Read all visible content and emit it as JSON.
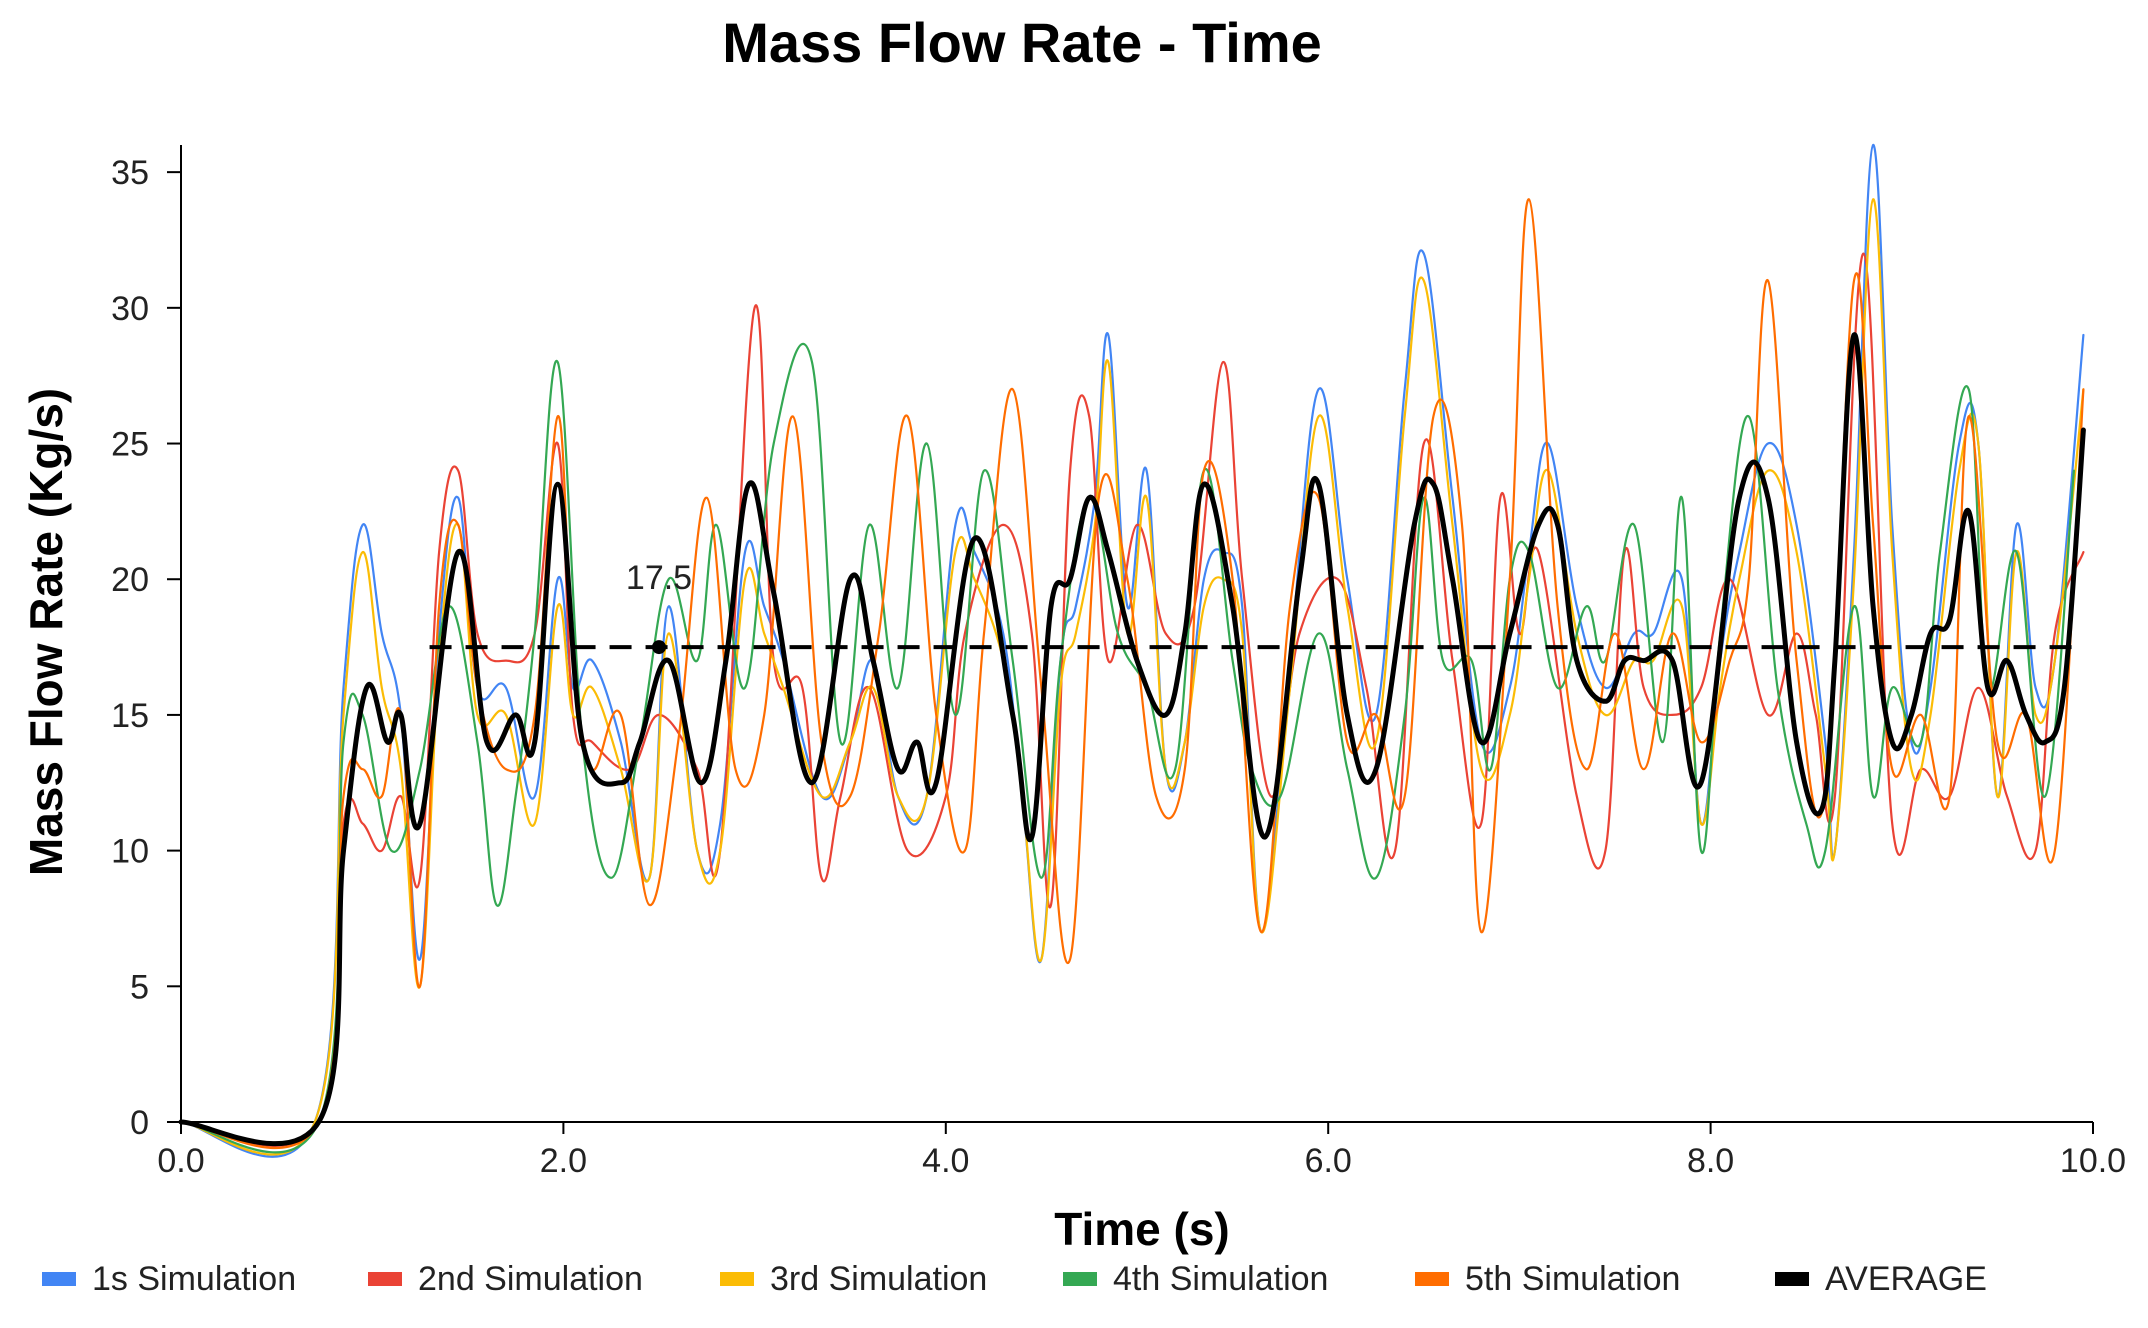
{
  "chart_data": {
    "type": "line",
    "title": "Mass Flow Rate - Time",
    "xlabel": "Time (s)",
    "ylabel": "Mass Flow Rate (Kg/s)",
    "xlim": [
      0,
      10
    ],
    "ylim": [
      0,
      36
    ],
    "x_ticks": [
      0,
      2,
      4,
      6,
      8,
      10
    ],
    "x_tick_labels": [
      "0.0",
      "2.0",
      "4.0",
      "6.0",
      "8.0",
      "10.0"
    ],
    "y_ticks": [
      0,
      5,
      10,
      15,
      20,
      25,
      30,
      35
    ],
    "y_tick_labels": [
      "0",
      "5",
      "10",
      "15",
      "20",
      "25",
      "30",
      "35"
    ],
    "grid": false,
    "legend_position": "bottom",
    "reference_line": {
      "value": 17.5,
      "label": "17.5",
      "x_start": 1.3,
      "x_end": 9.9,
      "marker_x": 2.5,
      "style": "dashed",
      "color": "#000000"
    },
    "series": [
      {
        "name": "1s Simulation",
        "color": "#4285F4",
        "x": [
          0,
          0.7,
          0.85,
          0.95,
          1.05,
          1.15,
          1.25,
          1.35,
          1.45,
          1.55,
          1.7,
          1.85,
          1.97,
          2.05,
          2.15,
          2.3,
          2.45,
          2.55,
          2.7,
          2.82,
          2.95,
          3.05,
          3.15,
          3.35,
          3.5,
          3.62,
          3.75,
          3.9,
          4.05,
          4.15,
          4.3,
          4.4,
          4.5,
          4.6,
          4.68,
          4.78,
          4.85,
          4.95,
          5.05,
          5.15,
          5.25,
          5.35,
          5.45,
          5.55,
          5.65,
          5.8,
          5.95,
          6.1,
          6.25,
          6.4,
          6.5,
          6.65,
          6.8,
          6.95,
          7.05,
          7.15,
          7.3,
          7.45,
          7.6,
          7.7,
          7.85,
          7.95,
          8.05,
          8.15,
          8.3,
          8.45,
          8.6,
          8.65,
          8.75,
          8.85,
          8.95,
          9.05,
          9.15,
          9.3,
          9.4,
          9.5,
          9.6,
          9.7,
          9.8,
          9.95
        ],
        "values": [
          0,
          0,
          16,
          22,
          18,
          15,
          6,
          18,
          23,
          16,
          16,
          12,
          20,
          16,
          17,
          14,
          9,
          19,
          10,
          11,
          21,
          19,
          17,
          12,
          14,
          17,
          12,
          12,
          22,
          21,
          18,
          12,
          6,
          17,
          19,
          23,
          29,
          19,
          24,
          13,
          14,
          20,
          21,
          19,
          7,
          17,
          27,
          20,
          15,
          27,
          32,
          23,
          14,
          16,
          21,
          25,
          19,
          16,
          18,
          18,
          20,
          11,
          17,
          21,
          25,
          22,
          14,
          10,
          21,
          36,
          22,
          14,
          16,
          25,
          25,
          12,
          22,
          16,
          17,
          29
        ]
      },
      {
        "name": "2nd Simulation",
        "color": "#EA4335",
        "x": [
          0,
          0.72,
          0.85,
          0.95,
          1.05,
          1.15,
          1.25,
          1.35,
          1.45,
          1.55,
          1.7,
          1.85,
          1.97,
          2.05,
          2.15,
          2.35,
          2.5,
          2.7,
          2.82,
          3.0,
          3.1,
          3.25,
          3.35,
          3.45,
          3.6,
          3.8,
          4.0,
          4.1,
          4.3,
          4.45,
          4.55,
          4.65,
          4.75,
          4.85,
          5.0,
          5.15,
          5.3,
          5.45,
          5.55,
          5.7,
          5.85,
          6.05,
          6.2,
          6.35,
          6.5,
          6.65,
          6.8,
          6.9,
          7.0,
          7.1,
          7.3,
          7.45,
          7.55,
          7.65,
          7.8,
          7.95,
          8.1,
          8.3,
          8.45,
          8.55,
          8.65,
          8.8,
          8.95,
          9.1,
          9.25,
          9.4,
          9.55,
          9.7,
          9.8,
          9.95
        ],
        "values": [
          0,
          0,
          11,
          11,
          10,
          12,
          9,
          21,
          24,
          18,
          17,
          18,
          25,
          15,
          14,
          13,
          15,
          13,
          10,
          30,
          17,
          16,
          9,
          12,
          16,
          10,
          12,
          18,
          22,
          18,
          8,
          24,
          26,
          17,
          22,
          18,
          19,
          28,
          20,
          12,
          18,
          20,
          16,
          10,
          25,
          17,
          11,
          23,
          18,
          21,
          12,
          10,
          21,
          16,
          15,
          16,
          20,
          15,
          18,
          15,
          12,
          32,
          11,
          13,
          12,
          16,
          12,
          10,
          18,
          21
        ]
      },
      {
        "name": "3rd Simulation",
        "color": "#FBBC05",
        "x": [
          0,
          0.7,
          0.85,
          0.95,
          1.05,
          1.15,
          1.25,
          1.35,
          1.45,
          1.55,
          1.7,
          1.85,
          1.97,
          2.05,
          2.15,
          2.3,
          2.45,
          2.55,
          2.7,
          2.82,
          2.95,
          3.05,
          3.15,
          3.35,
          3.5,
          3.62,
          3.75,
          3.9,
          4.05,
          4.15,
          4.3,
          4.4,
          4.5,
          4.6,
          4.68,
          4.78,
          4.85,
          4.95,
          5.05,
          5.15,
          5.25,
          5.35,
          5.45,
          5.55,
          5.65,
          5.8,
          5.95,
          6.1,
          6.25,
          6.4,
          6.5,
          6.65,
          6.8,
          6.95,
          7.05,
          7.15,
          7.3,
          7.45,
          7.6,
          7.7,
          7.85,
          7.95,
          8.05,
          8.15,
          8.3,
          8.45,
          8.6,
          8.65,
          8.75,
          8.85,
          8.95,
          9.05,
          9.15,
          9.3,
          9.4,
          9.5,
          9.6,
          9.7,
          9.8,
          9.95
        ],
        "values": [
          0,
          0,
          15,
          21,
          16,
          13,
          5,
          17,
          22,
          15,
          15,
          11,
          19,
          15,
          16,
          13,
          9,
          18,
          10,
          10,
          20,
          18,
          16,
          12,
          14,
          16,
          12,
          12,
          21,
          20,
          17,
          12,
          6,
          16,
          18,
          22,
          28,
          18,
          23,
          13,
          14,
          19,
          20,
          18,
          7,
          16,
          26,
          19,
          14,
          26,
          31,
          22,
          13,
          15,
          20,
          24,
          18,
          15,
          17,
          17,
          19,
          11,
          16,
          20,
          24,
          21,
          13,
          10,
          20,
          34,
          21,
          13,
          15,
          24,
          25,
          12,
          21,
          15,
          17,
          27
        ]
      },
      {
        "name": "4th Simulation",
        "color": "#34A853",
        "x": [
          0,
          0.72,
          0.85,
          0.95,
          1.1,
          1.25,
          1.4,
          1.55,
          1.65,
          1.75,
          1.85,
          1.97,
          2.1,
          2.25,
          2.4,
          2.55,
          2.7,
          2.8,
          2.95,
          3.1,
          3.3,
          3.45,
          3.6,
          3.75,
          3.9,
          4.05,
          4.2,
          4.35,
          4.5,
          4.6,
          4.75,
          4.9,
          5.05,
          5.2,
          5.35,
          5.5,
          5.6,
          5.75,
          5.95,
          6.1,
          6.25,
          6.4,
          6.5,
          6.6,
          6.75,
          6.85,
          6.95,
          7.05,
          7.2,
          7.35,
          7.45,
          7.6,
          7.75,
          7.85,
          7.95,
          8.05,
          8.2,
          8.35,
          8.5,
          8.6,
          8.75,
          8.85,
          8.95,
          9.1,
          9.2,
          9.35,
          9.45,
          9.6,
          9.75,
          9.9
        ],
        "values": [
          0,
          0,
          14,
          15,
          10,
          13,
          19,
          14,
          8,
          12,
          18,
          28,
          14,
          9,
          14,
          20,
          17,
          22,
          16,
          25,
          28,
          14,
          22,
          16,
          25,
          15,
          24,
          17,
          9,
          17,
          23,
          18,
          16,
          13,
          24,
          17,
          13,
          12,
          18,
          13,
          9,
          15,
          23,
          17,
          17,
          13,
          20,
          21,
          16,
          19,
          17,
          22,
          14,
          23,
          10,
          18,
          26,
          16,
          11,
          10,
          19,
          12,
          16,
          14,
          21,
          27,
          16,
          21,
          12,
          24
        ]
      },
      {
        "name": "5th Simulation",
        "color": "#FF6D00",
        "x": [
          0,
          0.72,
          0.85,
          0.95,
          1.05,
          1.15,
          1.25,
          1.35,
          1.45,
          1.55,
          1.7,
          1.85,
          1.97,
          2.05,
          2.15,
          2.3,
          2.45,
          2.6,
          2.75,
          2.9,
          3.05,
          3.2,
          3.35,
          3.5,
          3.65,
          3.8,
          3.95,
          4.1,
          4.2,
          4.35,
          4.5,
          4.65,
          4.8,
          4.95,
          5.1,
          5.25,
          5.35,
          5.5,
          5.65,
          5.8,
          5.95,
          6.1,
          6.25,
          6.4,
          6.55,
          6.7,
          6.8,
          6.95,
          7.05,
          7.2,
          7.35,
          7.5,
          7.65,
          7.8,
          7.95,
          8.1,
          8.2,
          8.3,
          8.45,
          8.6,
          8.75,
          8.85,
          8.95,
          9.1,
          9.25,
          9.35,
          9.5,
          9.65,
          9.8,
          9.95
        ],
        "values": [
          0,
          0,
          12,
          13,
          12,
          15,
          5,
          19,
          22,
          16,
          13,
          15,
          26,
          17,
          13,
          15,
          8,
          14,
          23,
          13,
          15,
          26,
          14,
          12,
          18,
          26,
          15,
          10,
          18,
          27,
          16,
          6,
          23,
          20,
          12,
          13,
          24,
          20,
          7,
          19,
          23,
          14,
          15,
          12,
          26,
          22,
          7,
          20,
          34,
          19,
          13,
          18,
          13,
          18,
          14,
          17,
          20,
          31,
          17,
          12,
          31,
          22,
          13,
          15,
          12,
          26,
          14,
          15,
          10,
          27
        ]
      },
      {
        "name": "AVERAGE",
        "color": "#000000",
        "x": [
          0,
          0.72,
          0.85,
          0.97,
          1.08,
          1.15,
          1.25,
          1.45,
          1.6,
          1.75,
          1.85,
          1.97,
          2.1,
          2.3,
          2.4,
          2.55,
          2.72,
          2.85,
          2.97,
          3.1,
          3.3,
          3.5,
          3.62,
          3.75,
          3.85,
          3.95,
          4.15,
          4.35,
          4.45,
          4.55,
          4.65,
          4.75,
          4.85,
          5.0,
          5.15,
          5.25,
          5.35,
          5.5,
          5.67,
          5.85,
          5.95,
          6.1,
          6.25,
          6.45,
          6.55,
          6.65,
          6.8,
          6.95,
          7.1,
          7.2,
          7.3,
          7.45,
          7.55,
          7.65,
          7.8,
          7.95,
          8.15,
          8.3,
          8.45,
          8.58,
          8.65,
          8.75,
          8.85,
          8.95,
          9.05,
          9.15,
          9.25,
          9.35,
          9.45,
          9.55,
          9.65,
          9.75,
          9.85,
          9.95
        ],
        "values": [
          0,
          0,
          10,
          16,
          14,
          15,
          11,
          21,
          14,
          15,
          14,
          23.5,
          14,
          12.5,
          14,
          17,
          12.5,
          17,
          23.5,
          19.5,
          12.5,
          20,
          17,
          13,
          14,
          12.5,
          21.5,
          15,
          10.5,
          19,
          20,
          23,
          21,
          17,
          15,
          18,
          23.5,
          19,
          10.5,
          20,
          23.5,
          15,
          13,
          22,
          23.5,
          20,
          14,
          18,
          22,
          22,
          17,
          15.5,
          17,
          17,
          17,
          12.5,
          23,
          23,
          14,
          11.5,
          17,
          29,
          19,
          14,
          15,
          18,
          18.5,
          22.5,
          16,
          17,
          15,
          14,
          16,
          25.5
        ]
      }
    ]
  }
}
